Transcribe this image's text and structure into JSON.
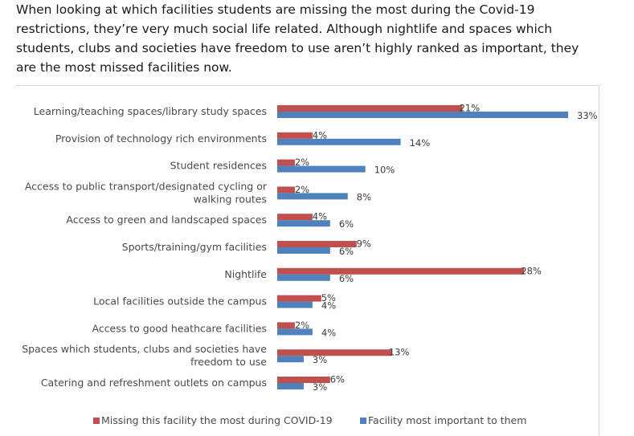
{
  "intro": {
    "lines": [
      "When looking at which facilities students are missing the most during the Covid-19",
      "restrictions, they’re very much social life related. Although nightlife and spaces which",
      "students, clubs and societies have freedom to use aren’t highly ranked as important, they",
      "are the most missed facilities now."
    ]
  },
  "chart_data": {
    "type": "bar",
    "orientation": "horizontal",
    "categories": [
      [
        "Learning/teaching spaces/library study spaces"
      ],
      [
        "Provision of technology rich environments"
      ],
      [
        "Student residences"
      ],
      [
        "Access to public transport/designated cycling or",
        "walking routes"
      ],
      [
        "Access to green and landscaped spaces"
      ],
      [
        "Sports/training/gym facilities"
      ],
      [
        "Nightlife"
      ],
      [
        "Local facilities outside the campus"
      ],
      [
        "Access to good heathcare facilities"
      ],
      [
        "Spaces which students, clubs and societies have",
        "freedom to use"
      ],
      [
        "Catering and refreshment outlets on campus"
      ]
    ],
    "series": [
      {
        "name": "Missing this facility the most during COVID-19",
        "color": "#c0504d",
        "values": [
          21,
          4,
          2,
          2,
          4,
          9,
          28,
          5,
          2,
          13,
          6
        ],
        "labels": [
          "21%",
          "4%",
          "2%",
          "2%",
          "4%",
          "9%",
          "28%",
          "5%",
          "2%",
          "13%",
          "6%"
        ]
      },
      {
        "name": "Facility most important to them",
        "color": "#4f81bd",
        "values": [
          33,
          14,
          10,
          8,
          6,
          6,
          6,
          4,
          4,
          3,
          3
        ],
        "labels": [
          "33%",
          "14%",
          "10%",
          "8%",
          "6%",
          "6%",
          "6%",
          "4%",
          "4%",
          "3%",
          "3%"
        ]
      }
    ],
    "xlim": [
      0,
      35
    ],
    "grid": false,
    "axis_visible": false,
    "legend_position": "bottom"
  }
}
